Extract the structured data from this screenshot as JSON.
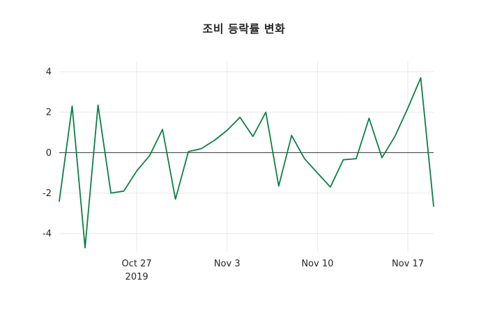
{
  "chart_data": {
    "type": "line",
    "title": "조비 등락률 변화",
    "xlabel": "",
    "ylabel": "",
    "x": [
      "2019-10-21",
      "2019-10-22",
      "2019-10-23",
      "2019-10-24",
      "2019-10-25",
      "2019-10-26",
      "2019-10-27",
      "2019-10-28",
      "2019-10-29",
      "2019-10-30",
      "2019-10-31",
      "2019-11-01",
      "2019-11-02",
      "2019-11-03",
      "2019-11-04",
      "2019-11-05",
      "2019-11-06",
      "2019-11-07",
      "2019-11-08",
      "2019-11-09",
      "2019-11-10",
      "2019-11-11",
      "2019-11-12",
      "2019-11-13",
      "2019-11-14",
      "2019-11-15",
      "2019-11-16",
      "2019-11-17",
      "2019-11-18",
      "2019-11-19"
    ],
    "values": [
      -2.4,
      2.3,
      -4.7,
      2.35,
      -2.0,
      -1.9,
      -0.9,
      -0.15,
      1.15,
      -2.3,
      0.05,
      0.2,
      0.6,
      1.1,
      1.75,
      0.8,
      2.0,
      -1.65,
      0.85,
      -0.3,
      -1.0,
      -1.7,
      -0.35,
      -0.3,
      1.7,
      -0.25,
      0.8,
      2.2,
      3.7,
      -2.65
    ],
    "ylim": [
      -4.9,
      4.52
    ],
    "yticks": [
      -4,
      -2,
      0,
      2,
      4
    ],
    "xticks": [
      {
        "date": "2019-10-27",
        "label": "Oct 27",
        "sublabel": "2019"
      },
      {
        "date": "2019-11-03",
        "label": "Nov 3",
        "sublabel": ""
      },
      {
        "date": "2019-11-10",
        "label": "Nov 10",
        "sublabel": ""
      },
      {
        "date": "2019-11-17",
        "label": "Nov 17",
        "sublabel": ""
      }
    ],
    "grid": true,
    "legend": "none",
    "line_color": "#0a8043",
    "zero_line_color": "#3d3d3d",
    "grid_color": "#e8e8e8",
    "text_color": "#262626",
    "background_color": "#ffffff"
  }
}
